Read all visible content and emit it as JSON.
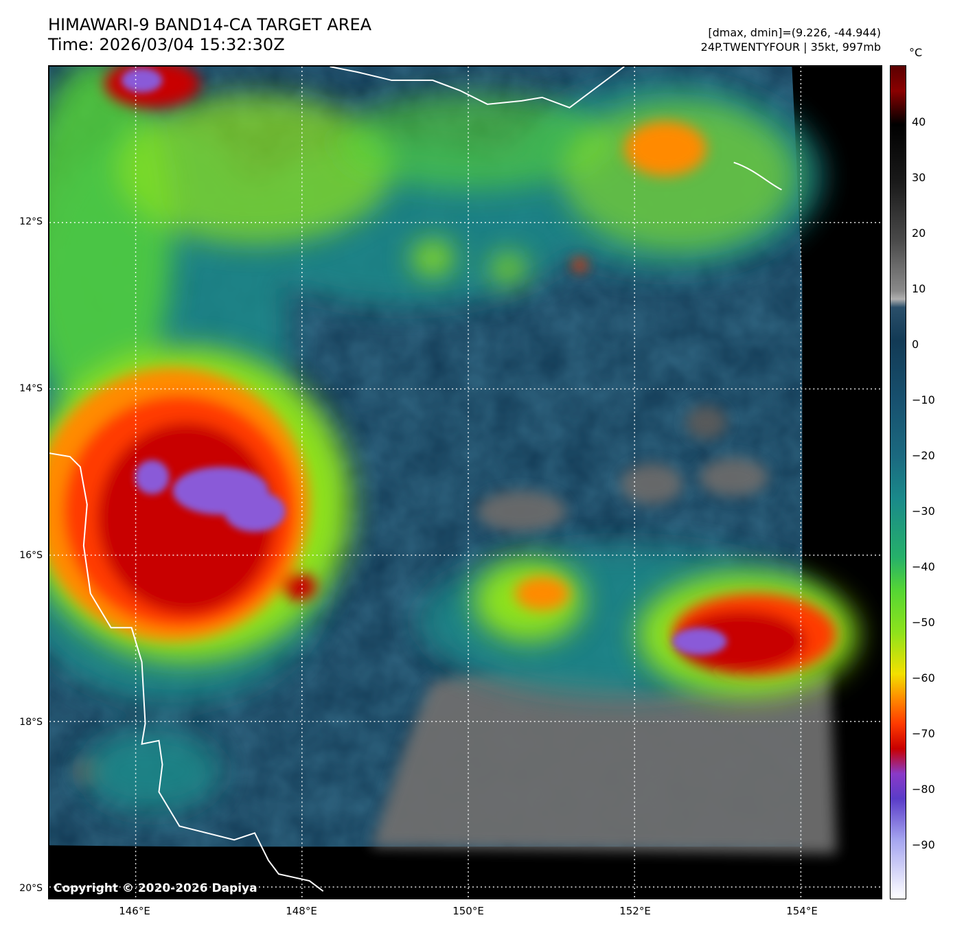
{
  "header": {
    "title": "HIMAWARI-9 BAND14-CA TARGET AREA",
    "time": "Time: 2026/03/04 15:32:30Z",
    "dminmax": "[dmax, dmin]=(9.226, -44.944)",
    "storm": "24P.TWENTYFOUR | 35kt, 997mb"
  },
  "map": {
    "copyright": "Copyright © 2020-2026 Dapiya",
    "lat_labels": [
      "12°S",
      "14°S",
      "16°S",
      "18°S",
      "20°S"
    ],
    "lon_labels": [
      "146°E",
      "148°E",
      "150°E",
      "152°E",
      "154°E"
    ],
    "lon_range": [
      145,
      155
    ],
    "lat_range": [
      -10.1,
      -20.1
    ]
  },
  "colorbar": {
    "unit": "°C",
    "ticks": [
      "40",
      "30",
      "20",
      "10",
      "0",
      "−10",
      "−20",
      "−30",
      "−40",
      "−50",
      "−60",
      "−70",
      "−80",
      "−90"
    ],
    "range": [
      50,
      -100
    ]
  },
  "colors": {
    "ocean_warm": "#123a55",
    "cold_top": "#c80000",
    "coldest": "#8a5ad8",
    "coast": "#ffffff"
  }
}
